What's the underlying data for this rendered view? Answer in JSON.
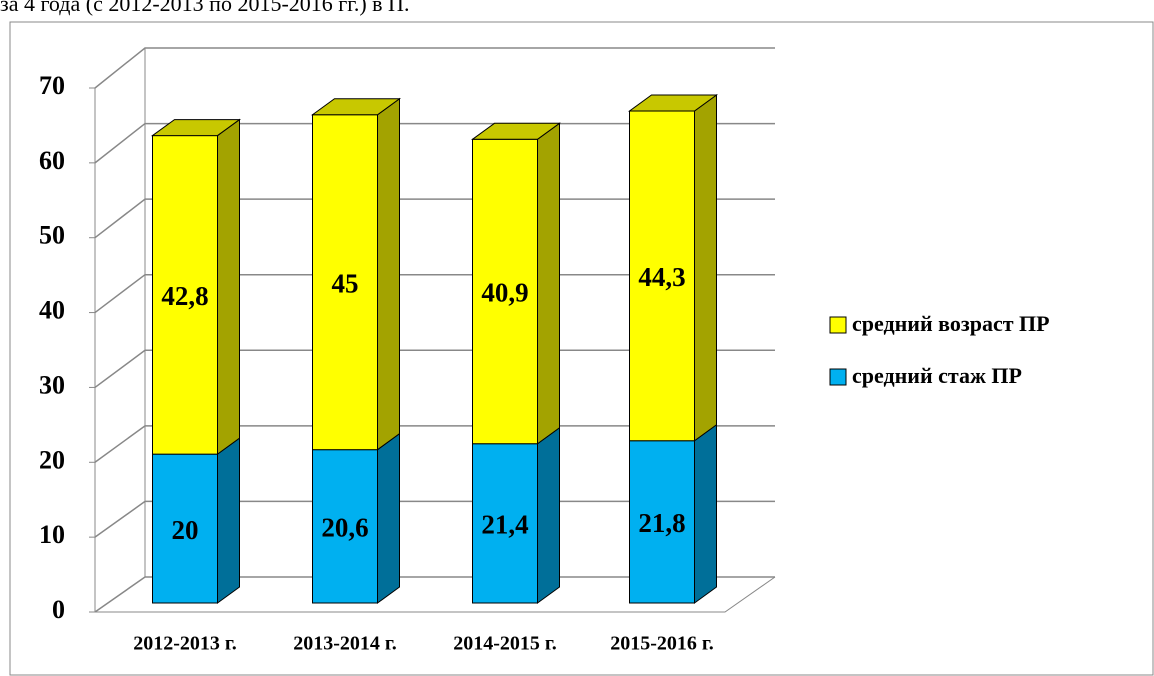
{
  "caption": "за 4 года (с 2012-2013 по 2015-2016 гг.) в П.",
  "chart_data": {
    "type": "bar3d_stacked",
    "categories": [
      "2012-2013 г.",
      "2013-2014 г.",
      "2014-2015 г.",
      "2015-2016 г."
    ],
    "series": [
      {
        "name": "средний стаж ПР",
        "color": "#00b0f0",
        "side_color": "#006f99",
        "values": [
          20,
          20.6,
          21.4,
          21.8
        ],
        "value_labels": [
          "20",
          "20,6",
          "21,4",
          "21,8"
        ]
      },
      {
        "name": "средний возраст ПР",
        "color": "#ffff00",
        "side_color": "#a3a300",
        "values": [
          42.8,
          45,
          40.9,
          44.3
        ],
        "value_labels": [
          "42,8",
          "45",
          "40,9",
          "44,3"
        ]
      }
    ],
    "ylim": [
      0,
      70
    ],
    "yticks": [
      0,
      10,
      20,
      30,
      40,
      50,
      60,
      70
    ],
    "grid": true,
    "legend": "right"
  }
}
